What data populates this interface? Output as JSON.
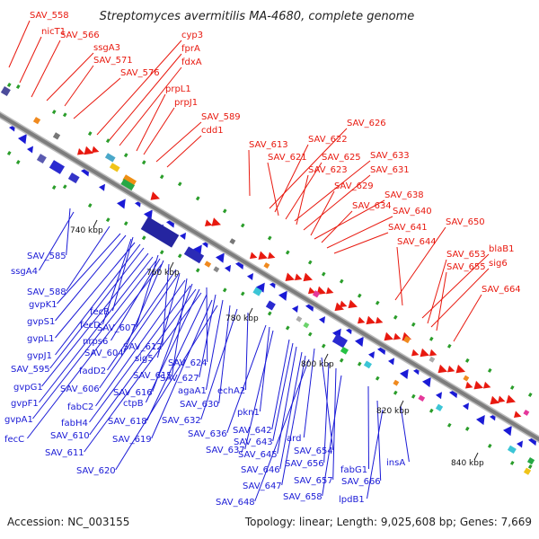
{
  "title": "Streptomyces avermitilis MA-4680, complete genome",
  "footer": {
    "accession": "Accession: NC_003155",
    "info": "Topology: linear; Length: 9,025,608 bp; Genes: 7,669"
  },
  "colors": {
    "forward": "#e8190f",
    "reverse": "#1a1ad6",
    "backbone": "#8c8c8c",
    "marker": "#2a9d2a"
  },
  "ticks": [
    "740 kbp",
    "760 kbp",
    "780 kbp",
    "800 kbp",
    "820 kbp",
    "840 kbp"
  ],
  "forward_labels": [
    "SAV_558",
    "nicT1",
    "SAV_566",
    "ssgA3",
    "SAV_571",
    "SAV_576",
    "cyp3",
    "fprA",
    "fdxA",
    "prpL1",
    "prpJ1",
    "SAV_589",
    "cdd1",
    "SAV_626",
    "SAV_622",
    "SAV_613",
    "SAV_621",
    "SAV_625",
    "SAV_633",
    "SAV_623",
    "SAV_631",
    "SAV_629",
    "SAV_638",
    "SAV_634",
    "SAV_640",
    "SAV_641",
    "SAV_650",
    "SAV_644",
    "blaB1",
    "SAV_653",
    "sig6",
    "SAV_655",
    "SAV_664"
  ],
  "reverse_labels": [
    "SAV_585",
    "ssgA4",
    "SAV_588",
    "gvpK1",
    "fecB",
    "gvpS1",
    "fecD",
    "SAV_607",
    "gvpL1",
    "nrps6",
    "SAV_604",
    "SAV_612",
    "gvpJ1",
    "SAV_595",
    "fadD2",
    "sig5",
    "SAV_615",
    "SAV_624",
    "gvpG1",
    "SAV_606",
    "SAV_616",
    "SAV_627",
    "gvpF1",
    "fabC2",
    "ctpB",
    "agaA1",
    "echA2",
    "gvpA1",
    "fabH4",
    "SAV_618",
    "SAV_630",
    "SAV_610",
    "SAV_619",
    "SAV_632",
    "pkn1",
    "fecC",
    "SAV_611",
    "SAV_636",
    "SAV_642",
    "SAV_643",
    "ard",
    "SAV_620",
    "SAV_637",
    "SAV_645",
    "SAV_654",
    "SAV_646",
    "SAV_656",
    "fabG1",
    "insA",
    "SAV_647",
    "SAV_657",
    "SAV_666",
    "SAV_648",
    "SAV_658",
    "lpdB1"
  ]
}
